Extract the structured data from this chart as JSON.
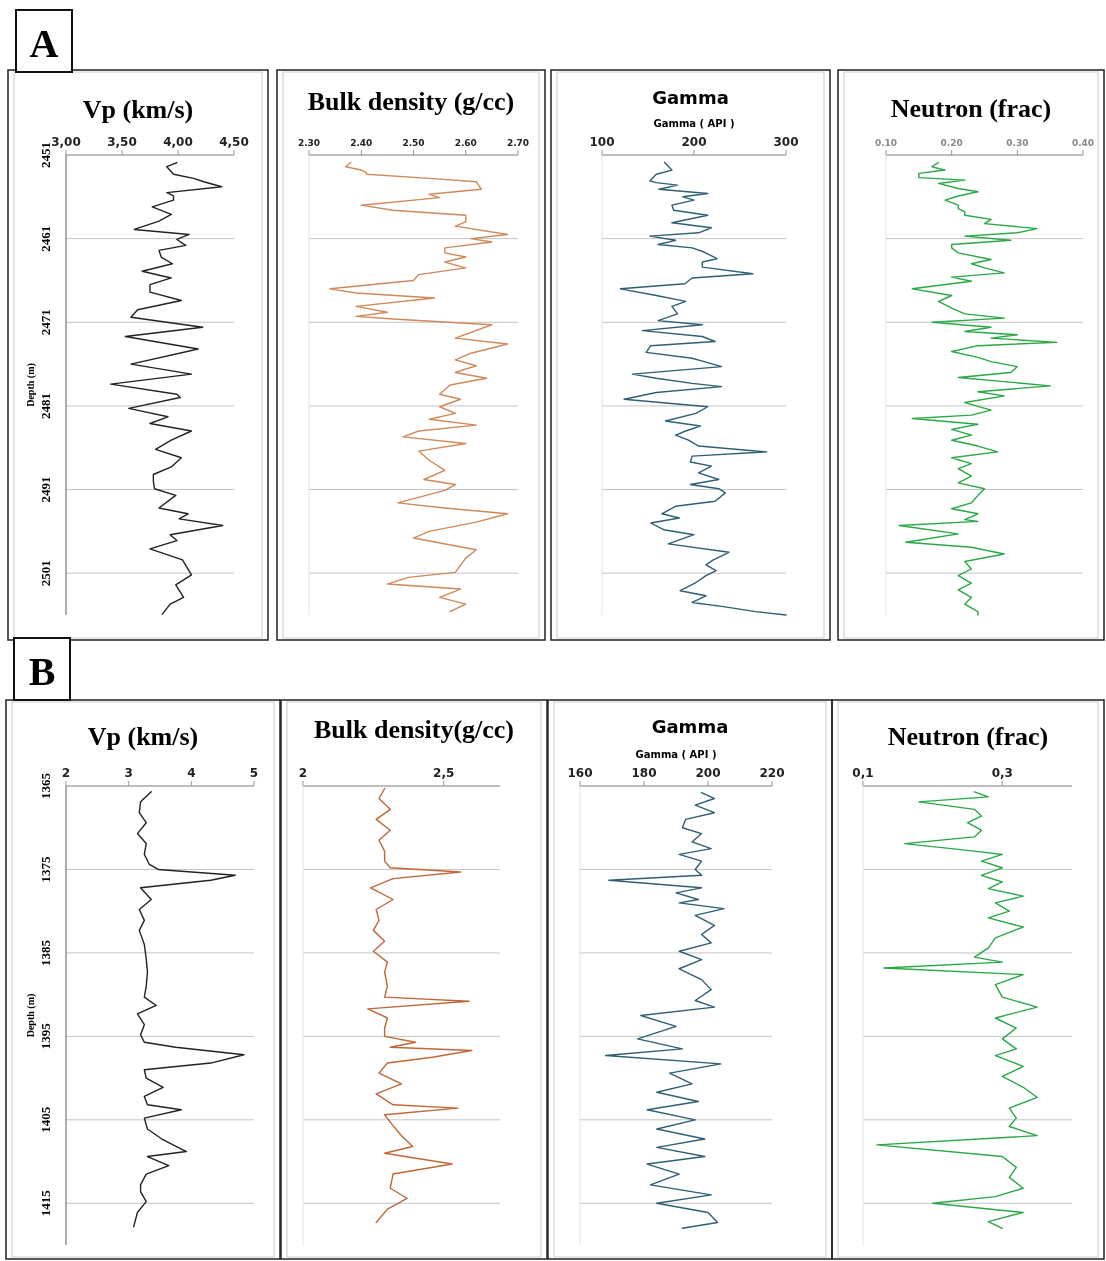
{
  "chart_data": [
    {
      "type": "line",
      "orientation": "horizontal",
      "title": "Vp (km/s)",
      "ylabel": "Depth (m)",
      "annotations": [
        "A"
      ],
      "xlim": [
        3,
        4.5
      ],
      "xticks": [
        {
          "value": 3,
          "label": "3,00"
        },
        {
          "value": 3.5,
          "label": "3,50"
        },
        {
          "value": 4,
          "label": "4,00"
        },
        {
          "value": 4.5,
          "label": "4,50"
        }
      ],
      "ylim": [
        2506,
        2451
      ],
      "yticks": [
        2451,
        2461,
        2471,
        2481,
        2491,
        2501
      ],
      "grid": "y",
      "series": [
        {
          "color": "#222222",
          "x": [
            2451.9,
            2452.4,
            2453.3,
            2453.8,
            2454.2,
            2454.8,
            2455.5,
            2455.9,
            2456.4,
            2457.2,
            2458.1,
            2458.9,
            2459.9,
            2460.5,
            2461.1,
            2461.8,
            2462.4,
            2463.2,
            2464.0,
            2464.9,
            2465.7,
            2466.5,
            2467.4,
            2468.4,
            2469.5,
            2470.4,
            2471.6,
            2472.7,
            2474.2,
            2476.0,
            2477.2,
            2478.4,
            2479.6,
            2480.0,
            2481.3,
            2482.3,
            2483.1,
            2484.0,
            2485.1,
            2486.2,
            2487.2,
            2488.3,
            2489.2,
            2490.0,
            2490.9,
            2491.7,
            2493.2,
            2493.9,
            2494.5,
            2495.3,
            2496.4,
            2497.1,
            2498.1,
            2499.4,
            2501.2,
            2502.4,
            2503.9,
            2504.7,
            2505.9
          ],
          "values": [
            3.99,
            3.9,
            3.96,
            4.14,
            4.23,
            4.39,
            3.9,
            3.96,
            3.96,
            3.77,
            3.94,
            3.83,
            3.61,
            4.1,
            3.99,
            4.07,
            3.83,
            3.85,
            3.95,
            3.68,
            3.94,
            3.75,
            3.75,
            4.03,
            3.64,
            3.58,
            4.22,
            3.53,
            4.18,
            3.58,
            4.12,
            3.4,
            3.99,
            4.02,
            3.56,
            3.91,
            3.75,
            4.12,
            3.94,
            3.8,
            4.03,
            3.94,
            3.78,
            3.78,
            3.79,
            3.98,
            3.83,
            4.09,
            4.01,
            4.4,
            3.93,
            3.99,
            3.75,
            4.04,
            4.12,
            3.98,
            4.05,
            3.93,
            3.86
          ]
        }
      ]
    },
    {
      "type": "line",
      "orientation": "horizontal",
      "title": "Bulk density (g/cc)",
      "xlim": [
        2.3,
        2.7
      ],
      "xticks": [
        {
          "value": 2.3,
          "label": "2.30"
        },
        {
          "value": 2.4,
          "label": "2.40"
        },
        {
          "value": 2.5,
          "label": "2.50"
        },
        {
          "value": 2.6,
          "label": "2.60"
        },
        {
          "value": 2.7,
          "label": "2.70"
        }
      ],
      "ylim": [
        2506,
        2451
      ],
      "yticks": [
        2451,
        2461,
        2471,
        2481,
        2491,
        2501
      ],
      "grid": "y",
      "tick_labels": "x",
      "series": [
        {
          "color": "#d0895a",
          "x": [
            2451.9,
            2452.4,
            2452.8,
            2453.1,
            2453.3,
            2453.8,
            2454.2,
            2455.1,
            2455.7,
            2456.1,
            2457.0,
            2457.6,
            2458.2,
            2459.0,
            2459.5,
            2460.5,
            2461.0,
            2461.4,
            2462.1,
            2462.7,
            2463.2,
            2463.8,
            2464.5,
            2465.3,
            2466.0,
            2467.0,
            2467.5,
            2468.1,
            2469.1,
            2469.8,
            2470.3,
            2470.6,
            2471.3,
            2472.9,
            2473.6,
            2474.7,
            2475.5,
            2476.2,
            2477.0,
            2477.7,
            2478.5,
            2479.6,
            2480.2,
            2481.1,
            2481.9,
            2482.6,
            2483.3,
            2484.0,
            2484.7,
            2485.5,
            2486.4,
            2487.5,
            2488.7,
            2489.8,
            2490.4,
            2491.1,
            2492.6,
            2493.2,
            2493.9,
            2494.9,
            2496.0,
            2496.8,
            2498.2,
            2499.2,
            2500.9,
            2501.5,
            2502.3,
            2502.9,
            2503.9,
            2504.7,
            2505.6
          ],
          "values": [
            2.38,
            2.37,
            2.4,
            2.41,
            2.41,
            2.53,
            2.62,
            2.63,
            2.53,
            2.55,
            2.4,
            2.46,
            2.6,
            2.6,
            2.58,
            2.68,
            2.61,
            2.65,
            2.56,
            2.56,
            2.6,
            2.56,
            2.6,
            2.51,
            2.5,
            2.34,
            2.39,
            2.54,
            2.39,
            2.45,
            2.39,
            2.46,
            2.65,
            2.58,
            2.68,
            2.61,
            2.58,
            2.62,
            2.58,
            2.64,
            2.57,
            2.55,
            2.59,
            2.55,
            2.58,
            2.53,
            2.62,
            2.51,
            2.48,
            2.6,
            2.51,
            2.53,
            2.56,
            2.52,
            2.58,
            2.56,
            2.47,
            2.56,
            2.68,
            2.62,
            2.53,
            2.5,
            2.62,
            2.6,
            2.58,
            2.49,
            2.45,
            2.59,
            2.55,
            2.6,
            2.57
          ]
        }
      ]
    },
    {
      "type": "line",
      "orientation": "horizontal",
      "title": "Gamma",
      "xlabel": "Gamma ( API )",
      "xlim": [
        100,
        300
      ],
      "xticks": [
        100,
        200,
        300
      ],
      "ylim": [
        2506,
        2451
      ],
      "yticks": [
        2451,
        2461,
        2471,
        2481,
        2491,
        2501
      ],
      "grid": "y",
      "tick_labels": "x",
      "series": [
        {
          "color": "#2e5f73",
          "x": [
            2451.9,
            2452.8,
            2453.3,
            2454.1,
            2454.3,
            2454.6,
            2455.1,
            2455.6,
            2456.0,
            2456.4,
            2457.0,
            2457.6,
            2458.2,
            2459.1,
            2459.7,
            2460.3,
            2460.7,
            2461.2,
            2461.7,
            2462.1,
            2462.6,
            2463.4,
            2463.8,
            2464.4,
            2465.2,
            2465.7,
            2466.4,
            2467.0,
            2467.8,
            2468.5,
            2469.1,
            2470.0,
            2470.8,
            2471.3,
            2472.0,
            2472.7,
            2473.3,
            2473.8,
            2474.6,
            2475.3,
            2475.7,
            2476.3,
            2477.2,
            2477.7,
            2478.3,
            2478.7,
            2479.4,
            2480.2,
            2481.1,
            2481.9,
            2482.8,
            2483.4,
            2484.0,
            2484.5,
            2485.1,
            2485.8,
            2486.5,
            2487.0,
            2487.7,
            2488.2,
            2489.0,
            2489.8,
            2490.4,
            2490.9,
            2491.4,
            2492.4,
            2493.0,
            2493.9,
            2494.4,
            2495.0,
            2495.8,
            2496.4,
            2497.5,
            2498.5,
            2499.4,
            2500.0,
            2500.7,
            2501.3,
            2502.2,
            2503.1,
            2503.7,
            2504.5,
            2505.0,
            2505.6,
            2506.0
          ],
          "values": [
            168,
            176,
            159,
            152,
            159,
            182,
            162,
            215,
            188,
            200,
            176,
            178,
            215,
            176,
            219,
            205,
            152,
            180,
            161,
            198,
            211,
            225,
            209,
            209,
            264,
            198,
            190,
            120,
            159,
            191,
            176,
            182,
            161,
            209,
            144,
            209,
            223,
            153,
            148,
            198,
            211,
            230,
            133,
            159,
            198,
            230,
            159,
            124,
            215,
            202,
            169,
            207,
            191,
            180,
            194,
            205,
            279,
            198,
            196,
            219,
            205,
            227,
            196,
            227,
            234,
            223,
            180,
            165,
            184,
            153,
            167,
            200,
            172,
            238,
            221,
            213,
            224,
            213,
            201,
            185,
            213,
            198,
            232,
            267,
            300
          ]
        }
      ]
    },
    {
      "type": "line",
      "orientation": "horizontal",
      "title": "Neutron (frac)",
      "xlim": [
        0.1,
        0.4
      ],
      "xticks": [
        {
          "value": 0.1,
          "label": "0.10"
        },
        {
          "value": 0.2,
          "label": "0.20"
        },
        {
          "value": 0.3,
          "label": "0.30"
        },
        {
          "value": 0.4,
          "label": "0.40"
        }
      ],
      "ylim": [
        2506,
        2451
      ],
      "yticks": [
        2451,
        2461,
        2471,
        2481,
        2491,
        2501
      ],
      "grid": "y",
      "tick_labels": "x",
      "series": [
        {
          "color": "#2aa845",
          "x": [
            2451.9,
            2452.4,
            2452.8,
            2453.2,
            2453.7,
            2454.0,
            2454.4,
            2455.0,
            2455.4,
            2455.9,
            2456.4,
            2457.0,
            2457.4,
            2457.8,
            2458.2,
            2458.7,
            2459.2,
            2459.8,
            2460.3,
            2460.7,
            2461.2,
            2461.7,
            2462.1,
            2462.7,
            2463.5,
            2464.0,
            2464.5,
            2465.1,
            2465.6,
            2466.1,
            2467.0,
            2467.8,
            2468.5,
            2469.3,
            2470.0,
            2470.5,
            2471.0,
            2471.6,
            2472.1,
            2472.5,
            2472.9,
            2473.4,
            2473.8,
            2474.5,
            2475.2,
            2475.7,
            2476.3,
            2477.0,
            2477.6,
            2478.1,
            2478.6,
            2479.3,
            2479.8,
            2480.6,
            2481.5,
            2482.1,
            2482.5,
            2483.2,
            2483.8,
            2484.5,
            2485.1,
            2485.8,
            2486.5,
            2487.2,
            2487.9,
            2488.5,
            2489.4,
            2490.2,
            2490.9,
            2491.7,
            2492.6,
            2493.3,
            2493.9,
            2494.6,
            2494.8,
            2495.3,
            2496.3,
            2497.3,
            2497.9,
            2498.7,
            2499.6,
            2500.5,
            2501.3,
            2502.2,
            2503.0,
            2503.9,
            2504.7,
            2505.6,
            2506.0
          ],
          "values": [
            0.18,
            0.17,
            0.19,
            0.15,
            0.15,
            0.22,
            0.18,
            0.21,
            0.24,
            0.21,
            0.19,
            0.21,
            0.21,
            0.22,
            0.22,
            0.26,
            0.25,
            0.33,
            0.3,
            0.22,
            0.29,
            0.2,
            0.2,
            0.21,
            0.26,
            0.23,
            0.25,
            0.28,
            0.2,
            0.23,
            0.14,
            0.2,
            0.18,
            0.2,
            0.22,
            0.28,
            0.17,
            0.26,
            0.22,
            0.3,
            0.26,
            0.36,
            0.24,
            0.2,
            0.24,
            0.26,
            0.3,
            0.29,
            0.21,
            0.28,
            0.35,
            0.24,
            0.28,
            0.22,
            0.26,
            0.23,
            0.14,
            0.24,
            0.2,
            0.23,
            0.2,
            0.24,
            0.27,
            0.2,
            0.23,
            0.21,
            0.23,
            0.21,
            0.25,
            0.24,
            0.23,
            0.2,
            0.24,
            0.22,
            0.24,
            0.12,
            0.21,
            0.13,
            0.23,
            0.28,
            0.22,
            0.23,
            0.21,
            0.23,
            0.21,
            0.23,
            0.22,
            0.24,
            0.24
          ]
        }
      ]
    },
    {
      "type": "line",
      "orientation": "horizontal",
      "title": "Vp (km/s)",
      "ylabel": "Depth (m)",
      "annotations": [
        "B"
      ],
      "xlim": [
        2,
        5
      ],
      "xticks": [
        2,
        3,
        4,
        5
      ],
      "ylim": [
        1420,
        1365
      ],
      "yticks": [
        1365,
        1375,
        1385,
        1395,
        1405,
        1415
      ],
      "grid": "y",
      "series": [
        {
          "color": "#222222",
          "x": [
            1365.7,
            1366.9,
            1368.2,
            1369.4,
            1370.7,
            1371.9,
            1373.2,
            1374.4,
            1375.0,
            1375.7,
            1376.3,
            1377.2,
            1378.6,
            1379.8,
            1381.1,
            1382.3,
            1384.0,
            1385.7,
            1387.3,
            1389.0,
            1390.3,
            1391.3,
            1392.3,
            1393.6,
            1394.8,
            1395.7,
            1396.3,
            1397.2,
            1398.2,
            1399.0,
            1400.0,
            1401.1,
            1402.2,
            1403.2,
            1403.8,
            1404.8,
            1406.1,
            1407.3,
            1408.8,
            1409.4,
            1410.5,
            1411.5,
            1412.8,
            1413.6,
            1414.8,
            1416.1,
            1417.8
          ],
          "values": [
            3.36,
            3.19,
            3.17,
            3.28,
            3.14,
            3.28,
            3.25,
            3.33,
            3.47,
            4.7,
            4.31,
            3.19,
            3.36,
            3.17,
            3.25,
            3.17,
            3.25,
            3.28,
            3.3,
            3.28,
            3.25,
            3.44,
            3.14,
            3.25,
            3.19,
            3.25,
            3.75,
            4.84,
            4.31,
            3.25,
            3.28,
            3.55,
            3.25,
            3.3,
            3.84,
            3.25,
            3.3,
            3.53,
            3.92,
            3.3,
            3.64,
            3.28,
            3.19,
            3.19,
            3.28,
            3.14,
            3.08
          ]
        }
      ]
    },
    {
      "type": "line",
      "orientation": "horizontal",
      "title": "Bulk density(g/cc)",
      "xlim": [
        2,
        2.7
      ],
      "xticks": [
        {
          "value": 2,
          "label": "2"
        },
        {
          "value": 2.5,
          "label": "2,5"
        }
      ],
      "ylim": [
        1420,
        1365
      ],
      "yticks": [
        1365,
        1375,
        1385,
        1395,
        1405,
        1415
      ],
      "grid": "y",
      "tick_labels": "x",
      "series": [
        {
          "color": "#c0673a",
          "x": [
            1365.3,
            1366.5,
            1367.8,
            1369.0,
            1370.3,
            1371.5,
            1372.8,
            1374.0,
            1374.8,
            1375.3,
            1376.1,
            1377.2,
            1378.6,
            1379.8,
            1381.1,
            1382.3,
            1383.6,
            1384.8,
            1386.1,
            1387.3,
            1389.0,
            1390.3,
            1390.8,
            1391.7,
            1392.8,
            1394.0,
            1395.0,
            1395.7,
            1396.3,
            1396.7,
            1397.5,
            1398.2,
            1399.4,
            1400.7,
            1401.9,
            1403.2,
            1403.6,
            1404.4,
            1405.7,
            1406.9,
            1408.2,
            1409.0,
            1410.3,
            1411.5,
            1413.2,
            1414.4,
            1415.7,
            1417.3
          ],
          "values": [
            2.29,
            2.27,
            2.31,
            2.26,
            2.31,
            2.27,
            2.29,
            2.29,
            2.31,
            2.56,
            2.32,
            2.24,
            2.32,
            2.26,
            2.27,
            2.25,
            2.29,
            2.25,
            2.3,
            2.29,
            2.3,
            2.29,
            2.59,
            2.23,
            2.3,
            2.29,
            2.29,
            2.4,
            2.31,
            2.6,
            2.46,
            2.3,
            2.27,
            2.35,
            2.26,
            2.32,
            2.55,
            2.29,
            2.32,
            2.35,
            2.39,
            2.29,
            2.53,
            2.32,
            2.31,
            2.37,
            2.3,
            2.26
          ]
        }
      ]
    },
    {
      "type": "line",
      "orientation": "horizontal",
      "title": "Gamma",
      "xlabel": "Gamma ( API )",
      "xlim": [
        160,
        220
      ],
      "xticks": [
        160,
        180,
        200,
        220
      ],
      "ylim": [
        1420,
        1365
      ],
      "yticks": [
        1365,
        1375,
        1385,
        1395,
        1405,
        1415
      ],
      "grid": "y",
      "tick_labels": "x",
      "series": [
        {
          "color": "#2e5f73",
          "x": [
            1365.8,
            1366.5,
            1367.3,
            1368.2,
            1369.0,
            1370.0,
            1370.7,
            1371.7,
            1372.5,
            1373.2,
            1374.0,
            1375.0,
            1375.7,
            1376.3,
            1377.2,
            1377.8,
            1378.6,
            1379.0,
            1379.7,
            1380.5,
            1381.7,
            1382.8,
            1383.8,
            1384.8,
            1385.8,
            1386.9,
            1388.2,
            1389.4,
            1390.7,
            1391.5,
            1392.5,
            1393.8,
            1395.3,
            1396.5,
            1397.3,
            1398.3,
            1399.4,
            1400.7,
            1401.7,
            1402.8,
            1403.8,
            1405.0,
            1406.1,
            1407.3,
            1408.3,
            1409.4,
            1410.3,
            1411.5,
            1412.8,
            1414.0,
            1415.0,
            1416.1,
            1417.3,
            1418.0
          ],
          "values": [
            198,
            202,
            196,
            202,
            193,
            192,
            198,
            195,
            201,
            191,
            198,
            196,
            198,
            169,
            198,
            190,
            197,
            191,
            205,
            196,
            202,
            198,
            201,
            191,
            198,
            191,
            198,
            201,
            196,
            202,
            179,
            190,
            178,
            192,
            168,
            204,
            188,
            195,
            184,
            197,
            181,
            196,
            184,
            199,
            184,
            199,
            181,
            191,
            182,
            201,
            184,
            200,
            203,
            192
          ]
        }
      ]
    },
    {
      "type": "line",
      "orientation": "horizontal",
      "title": "Neutron (frac)",
      "xlim": [
        0.1,
        0.4
      ],
      "xticks": [
        {
          "value": 0.1,
          "label": "0,1"
        },
        {
          "value": 0.3,
          "label": "0,3"
        }
      ],
      "ylim": [
        1420,
        1365
      ],
      "yticks": [
        1365,
        1375,
        1385,
        1395,
        1405,
        1415
      ],
      "grid": "y",
      "tick_labels": "x",
      "series": [
        {
          "color": "#2aa845",
          "x": [
            1365.7,
            1366.3,
            1366.9,
            1367.8,
            1368.6,
            1369.4,
            1370.3,
            1371.1,
            1371.9,
            1372.8,
            1373.2,
            1374.0,
            1374.8,
            1375.7,
            1376.5,
            1377.3,
            1378.2,
            1379.0,
            1380.0,
            1380.8,
            1381.9,
            1383.2,
            1384.4,
            1385.5,
            1386.1,
            1386.8,
            1387.6,
            1388.8,
            1390.3,
            1391.5,
            1392.8,
            1394.0,
            1395.3,
            1396.5,
            1397.3,
            1398.6,
            1399.8,
            1401.1,
            1402.3,
            1403.6,
            1404.8,
            1405.8,
            1406.9,
            1408.0,
            1409.4,
            1410.7,
            1411.9,
            1413.2,
            1414.2,
            1415.0,
            1416.1,
            1417.2,
            1418.0
          ],
          "values": [
            0.26,
            0.28,
            0.18,
            0.26,
            0.27,
            0.25,
            0.27,
            0.26,
            0.16,
            0.26,
            0.3,
            0.27,
            0.3,
            0.27,
            0.3,
            0.28,
            0.33,
            0.29,
            0.31,
            0.28,
            0.33,
            0.29,
            0.28,
            0.26,
            0.3,
            0.13,
            0.33,
            0.29,
            0.3,
            0.35,
            0.29,
            0.32,
            0.3,
            0.32,
            0.29,
            0.33,
            0.3,
            0.33,
            0.35,
            0.31,
            0.32,
            0.31,
            0.35,
            0.12,
            0.3,
            0.32,
            0.31,
            0.33,
            0.29,
            0.2,
            0.33,
            0.28,
            0.3
          ]
        }
      ]
    }
  ]
}
